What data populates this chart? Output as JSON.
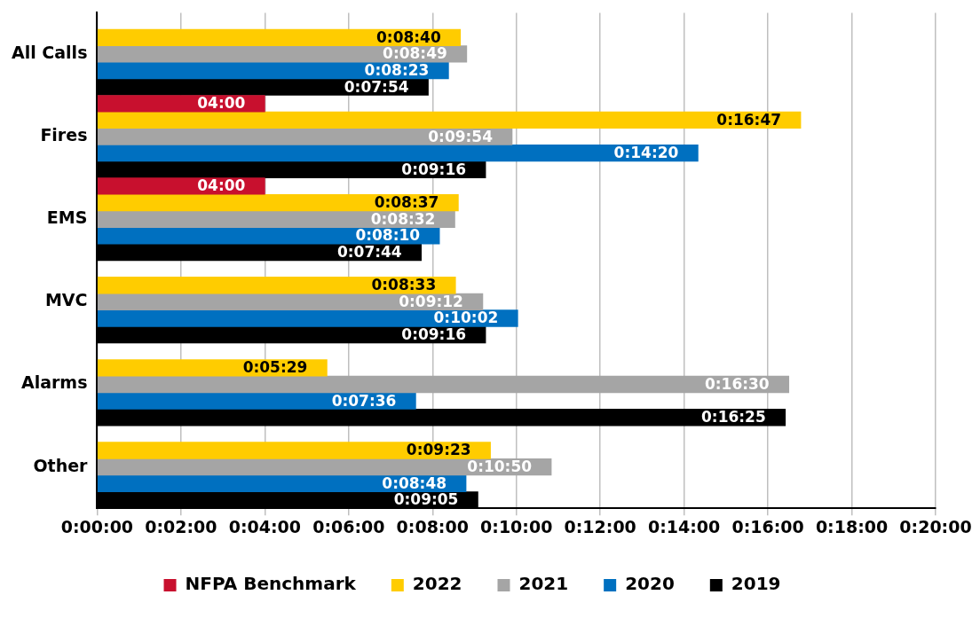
{
  "chart_data": {
    "type": "bar",
    "orientation": "horizontal",
    "categories": [
      "All Calls",
      "Fires",
      "EMS",
      "MVC",
      "Alarms",
      "Other"
    ],
    "series": [
      {
        "name": "NFPA Benchmark",
        "color": "#c8102e",
        "values": [
          null,
          4,
          4,
          null,
          null,
          null
        ],
        "value_labels": [
          null,
          "04:00",
          "04:00",
          null,
          null,
          null
        ]
      },
      {
        "name": "2022",
        "color": "#ffcc00",
        "values": [
          8.6667,
          16.7833,
          8.6167,
          8.55,
          5.4833,
          9.3833
        ],
        "value_labels": [
          "0:08:40",
          "0:16:47",
          "0:08:37",
          "0:08:33",
          "0:05:29",
          "0:09:23"
        ]
      },
      {
        "name": "2021",
        "color": "#a5a5a5",
        "values": [
          8.8167,
          9.9,
          8.5333,
          9.2,
          16.5,
          10.8333
        ],
        "value_labels": [
          "0:08:49",
          "0:09:54",
          "0:08:32",
          "0:09:12",
          "0:16:30",
          "0:10:50"
        ]
      },
      {
        "name": "2020",
        "color": "#0070c0",
        "values": [
          8.3833,
          14.3333,
          8.1667,
          10.0333,
          7.6,
          8.8
        ],
        "value_labels": [
          "0:08:23",
          "0:14:20",
          "0:08:10",
          "0:10:02",
          "0:07:36",
          "0:08:48"
        ]
      },
      {
        "name": "2019",
        "color": "#000000",
        "values": [
          7.9,
          9.2667,
          7.7333,
          9.2667,
          16.4167,
          9.0833
        ],
        "value_labels": [
          "0:07:54",
          "0:09:16",
          "0:07:44",
          "0:09:16",
          "0:16:25",
          "0:09:05"
        ]
      }
    ],
    "xlim": [
      0,
      20
    ],
    "xticks": [
      {
        "value": 0,
        "label": "0:00:00"
      },
      {
        "value": 2,
        "label": "0:02:00"
      },
      {
        "value": 4,
        "label": "0:04:00"
      },
      {
        "value": 6,
        "label": "0:06:00"
      },
      {
        "value": 8,
        "label": "0:08:00"
      },
      {
        "value": 10,
        "label": "0:10:00"
      },
      {
        "value": 12,
        "label": "0:12:00"
      },
      {
        "value": 14,
        "label": "0:14:00"
      },
      {
        "value": 16,
        "label": "0:16:00"
      },
      {
        "value": 18,
        "label": "0:18:00"
      },
      {
        "value": 20,
        "label": "0:20:00"
      }
    ],
    "grid": "x",
    "legend": "bottom"
  }
}
